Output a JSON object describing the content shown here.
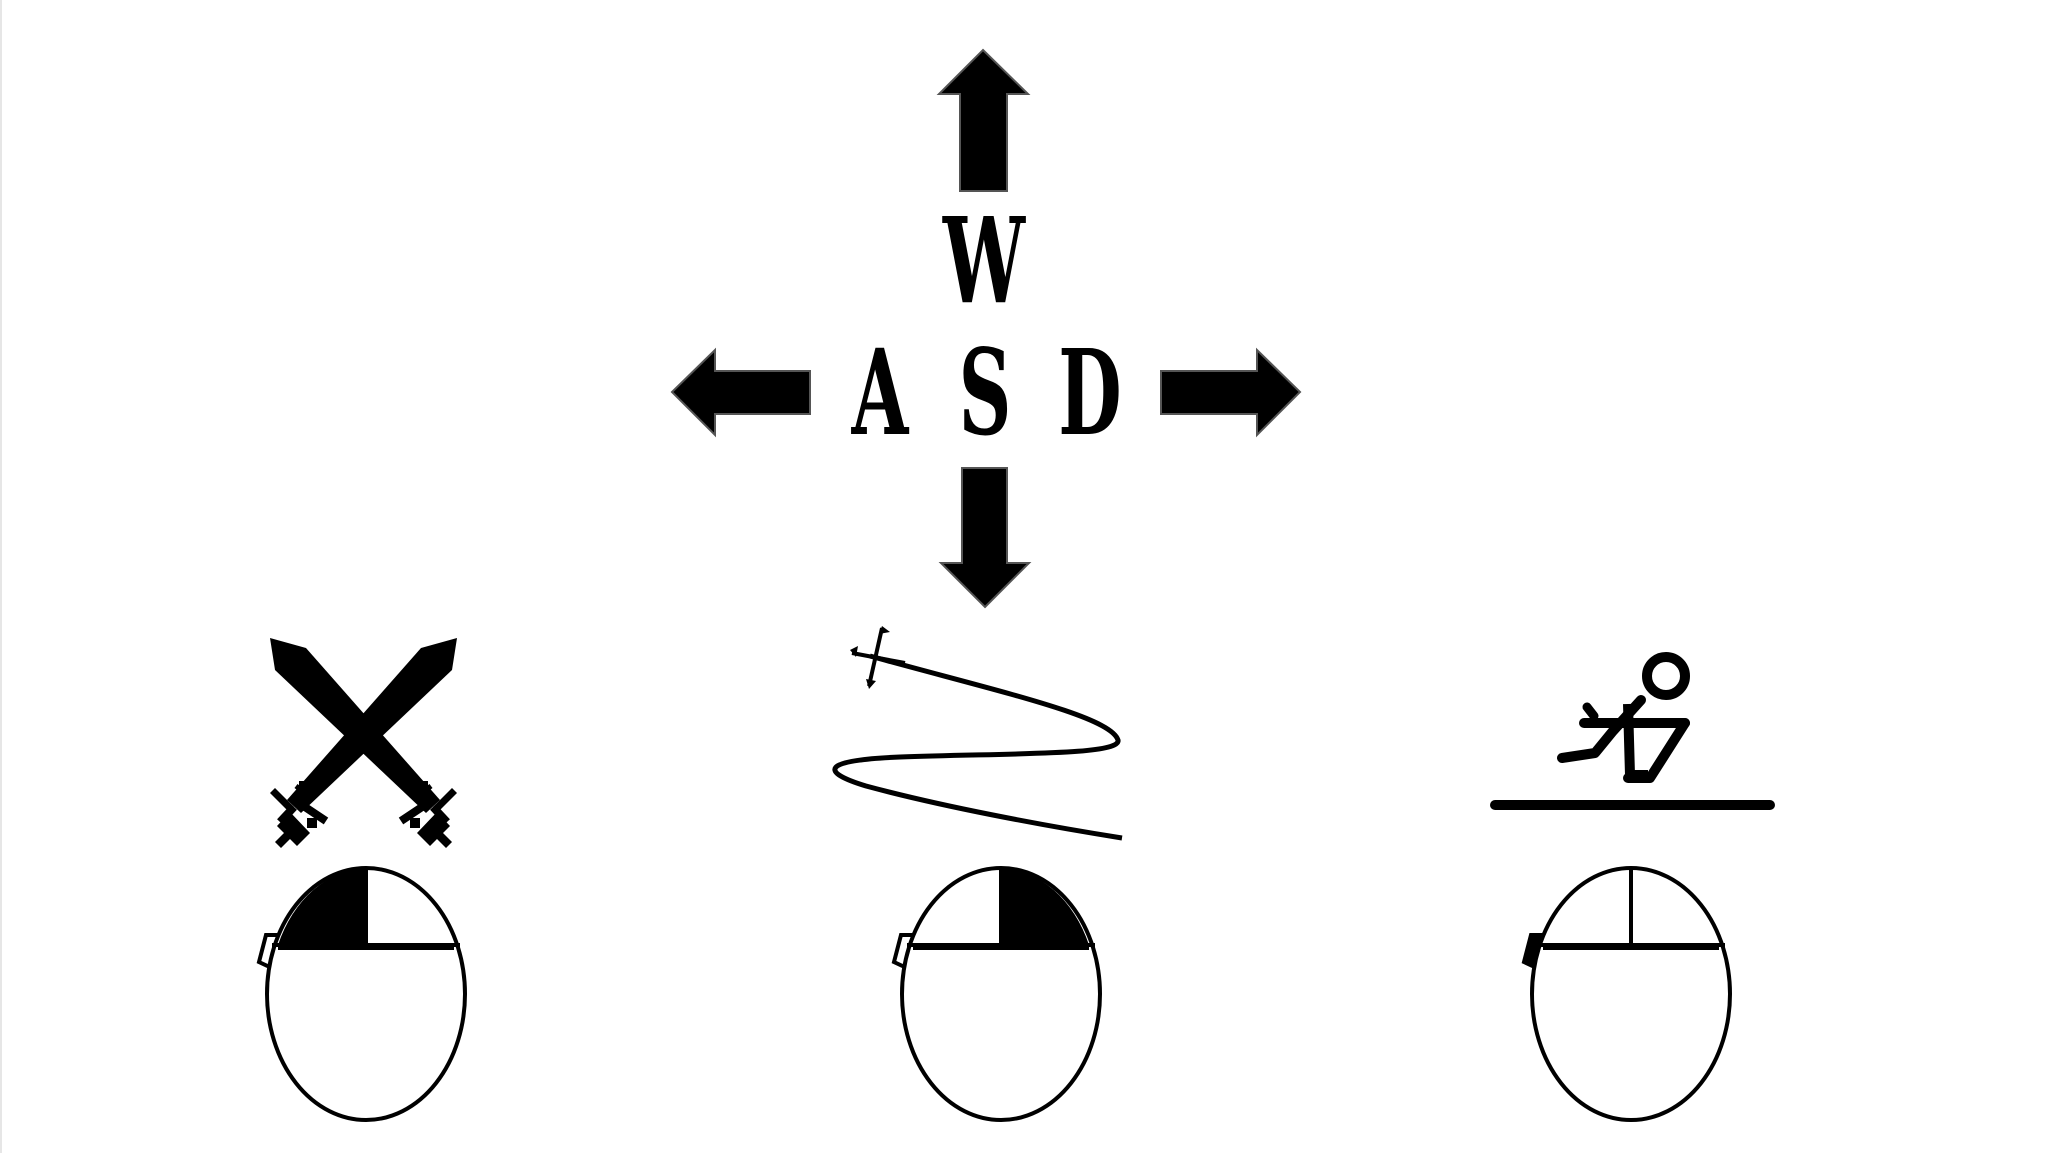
{
  "movement": {
    "keys": {
      "up": "W",
      "left": "A",
      "down": "S",
      "right": "D"
    },
    "arrows": [
      "up",
      "left",
      "down",
      "right"
    ]
  },
  "actions": [
    {
      "icon": "crossed-swords-icon",
      "mouse_button": "left",
      "mouse_icon": "mouse-left-click-icon"
    },
    {
      "icon": "grappling-hook-icon",
      "mouse_button": "right",
      "mouse_icon": "mouse-right-click-icon"
    },
    {
      "icon": "crouch-icon",
      "mouse_button": "side",
      "mouse_icon": "mouse-side-button-icon"
    }
  ],
  "colors": {
    "background": "#ffffff",
    "ink": "#000000"
  }
}
